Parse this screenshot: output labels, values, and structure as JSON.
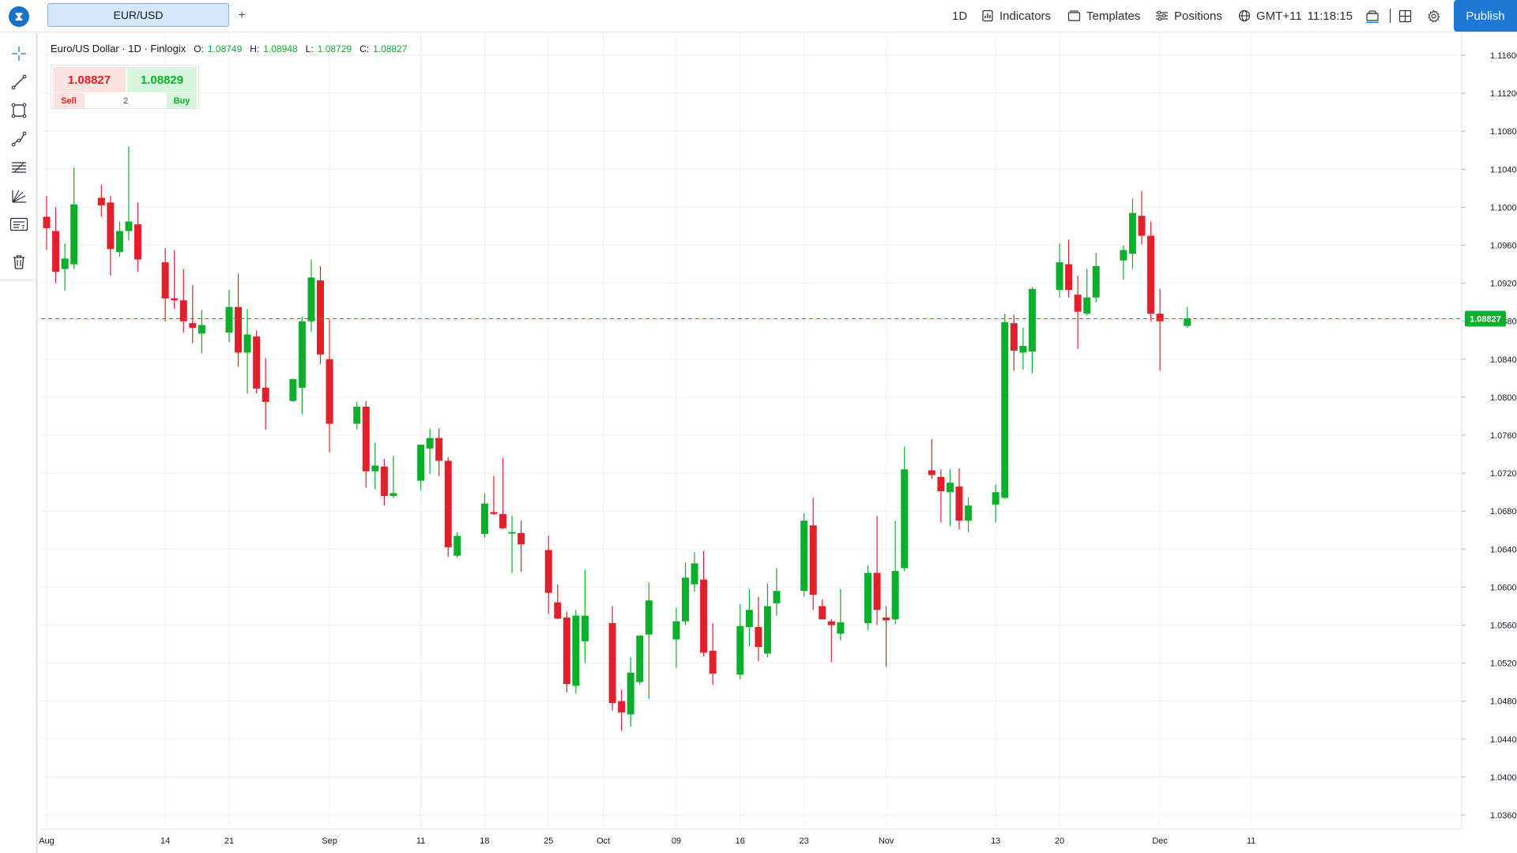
{
  "app": {
    "logo_glyph": "⧗"
  },
  "tabs": [
    {
      "label": "EUR/USD",
      "active": true
    }
  ],
  "add_tab_label": "+",
  "toolbar": {
    "interval": "1D",
    "indicators_label": "Indicators",
    "templates_label": "Templates",
    "positions_label": "Positions",
    "timezone": "GMT+11",
    "clock": "11:18:15",
    "publish_label": "Publish"
  },
  "left_tools": [
    "crosshair-icon",
    "trend-line-icon",
    "rectangle-icon",
    "path-icon",
    "fib-levels-icon",
    "pitchfork-icon",
    "text-note-icon",
    "trash-icon"
  ],
  "legend": {
    "symbol_desc": "Euro/US Dollar · 1D · Finlogix",
    "o_label": "O:",
    "o_value": "1.08749",
    "h_label": "H:",
    "h_value": "1.08948",
    "l_label": "L:",
    "l_value": "1.08729",
    "c_label": "C:",
    "c_value": "1.08827"
  },
  "trade": {
    "sell_price": "1.08827",
    "buy_price": "1.08829",
    "sell_label": "Sell",
    "buy_label": "Buy",
    "quantity": "2"
  },
  "colors": {
    "up": "#0ab02c",
    "down": "#e0202a",
    "grid": "#eef0f3",
    "last_price_line": "#0ab02c",
    "accent": "#1e78d6"
  },
  "chart_data": {
    "type": "candlestick",
    "y_axis": {
      "min": 1.034,
      "max": 1.118,
      "ticks": [
        "1.11600",
        "1.11200",
        "1.10800",
        "1.10400",
        "1.10000",
        "1.09600",
        "1.09200",
        "1.08800",
        "1.08400",
        "1.08000",
        "1.07600",
        "1.07200",
        "1.06800",
        "1.06400",
        "1.06000",
        "1.05600",
        "1.05200",
        "1.04800",
        "1.04400",
        "1.04000",
        "1.03600"
      ]
    },
    "x_axis": {
      "labels": [
        "Aug",
        "14",
        "21",
        "Sep",
        "11",
        "18",
        "25",
        "Oct",
        "09",
        "16",
        "23",
        "Nov",
        "13",
        "20",
        "Dec",
        "11"
      ],
      "label_dates": [
        "2023-08-01",
        "2023-08-14",
        "2023-08-21",
        "2023-09-01",
        "2023-09-11",
        "2023-09-18",
        "2023-09-25",
        "2023-10-01",
        "2023-10-09",
        "2023-10-16",
        "2023-10-23",
        "2023-11-01",
        "2023-11-13",
        "2023-11-20",
        "2023-12-01",
        "2023-12-11"
      ]
    },
    "last_price": "1.08827",
    "gridlines": true,
    "candles": [
      {
        "date": "2023-08-01",
        "o": 1.099,
        "h": 1.1012,
        "l": 1.0955,
        "c": 1.0978
      },
      {
        "date": "2023-08-02",
        "o": 1.0975,
        "h": 1.1,
        "l": 1.092,
        "c": 1.0932
      },
      {
        "date": "2023-08-03",
        "o": 1.0935,
        "h": 1.0962,
        "l": 1.0912,
        "c": 1.0946
      },
      {
        "date": "2023-08-04",
        "o": 1.094,
        "h": 1.1042,
        "l": 1.0935,
        "c": 1.1003
      },
      {
        "date": "2023-08-07",
        "o": 1.101,
        "h": 1.1024,
        "l": 1.099,
        "c": 1.1002
      },
      {
        "date": "2023-08-08",
        "o": 1.1005,
        "h": 1.1012,
        "l": 1.0928,
        "c": 1.0956
      },
      {
        "date": "2023-08-09",
        "o": 1.0953,
        "h": 1.0985,
        "l": 1.0948,
        "c": 1.0975
      },
      {
        "date": "2023-08-10",
        "o": 1.0975,
        "h": 1.1064,
        "l": 1.0965,
        "c": 1.0985
      },
      {
        "date": "2023-08-11",
        "o": 1.0982,
        "h": 1.1005,
        "l": 1.0932,
        "c": 1.0945
      },
      {
        "date": "2023-08-14",
        "o": 1.0942,
        "h": 1.0957,
        "l": 1.088,
        "c": 1.0904
      },
      {
        "date": "2023-08-15",
        "o": 1.0904,
        "h": 1.0955,
        "l": 1.0893,
        "c": 1.0902
      },
      {
        "date": "2023-08-16",
        "o": 1.0902,
        "h": 1.0935,
        "l": 1.0868,
        "c": 1.088
      },
      {
        "date": "2023-08-17",
        "o": 1.0878,
        "h": 1.0918,
        "l": 1.0857,
        "c": 1.0873
      },
      {
        "date": "2023-08-18",
        "o": 1.0867,
        "h": 1.0892,
        "l": 1.0846,
        "c": 1.0876
      },
      {
        "date": "2023-08-21",
        "o": 1.0868,
        "h": 1.0913,
        "l": 1.0858,
        "c": 1.0895
      },
      {
        "date": "2023-08-22",
        "o": 1.0895,
        "h": 1.093,
        "l": 1.0832,
        "c": 1.0847
      },
      {
        "date": "2023-08-23",
        "o": 1.0847,
        "h": 1.0893,
        "l": 1.0804,
        "c": 1.0866
      },
      {
        "date": "2023-08-24",
        "o": 1.0864,
        "h": 1.087,
        "l": 1.0804,
        "c": 1.0809
      },
      {
        "date": "2023-08-25",
        "o": 1.081,
        "h": 1.0841,
        "l": 1.0766,
        "c": 1.0795
      },
      {
        "date": "2023-08-28",
        "o": 1.0796,
        "h": 1.082,
        "l": 1.0795,
        "c": 1.0819
      },
      {
        "date": "2023-08-29",
        "o": 1.081,
        "h": 1.0885,
        "l": 1.0782,
        "c": 1.088
      },
      {
        "date": "2023-08-30",
        "o": 1.088,
        "h": 1.0945,
        "l": 1.0869,
        "c": 1.0926
      },
      {
        "date": "2023-08-31",
        "o": 1.0923,
        "h": 1.0938,
        "l": 1.0835,
        "c": 1.0845
      },
      {
        "date": "2023-09-01",
        "o": 1.084,
        "h": 1.0882,
        "l": 1.0742,
        "c": 1.0772
      },
      {
        "date": "2023-09-04",
        "o": 1.0772,
        "h": 1.0795,
        "l": 1.0766,
        "c": 1.079
      },
      {
        "date": "2023-09-05",
        "o": 1.079,
        "h": 1.0796,
        "l": 1.0705,
        "c": 1.0722
      },
      {
        "date": "2023-09-06",
        "o": 1.0722,
        "h": 1.0752,
        "l": 1.0703,
        "c": 1.0728
      },
      {
        "date": "2023-09-07",
        "o": 1.0727,
        "h": 1.0735,
        "l": 1.0686,
        "c": 1.0696
      },
      {
        "date": "2023-09-08",
        "o": 1.0696,
        "h": 1.0738,
        "l": 1.0694,
        "c": 1.0699
      },
      {
        "date": "2023-09-11",
        "o": 1.0712,
        "h": 1.075,
        "l": 1.0702,
        "c": 1.075
      },
      {
        "date": "2023-09-12",
        "o": 1.0746,
        "h": 1.0767,
        "l": 1.0719,
        "c": 1.0757
      },
      {
        "date": "2023-09-13",
        "o": 1.0757,
        "h": 1.0767,
        "l": 1.0717,
        "c": 1.0733
      },
      {
        "date": "2023-09-14",
        "o": 1.0733,
        "h": 1.0737,
        "l": 1.0632,
        "c": 1.0642
      },
      {
        "date": "2023-09-15",
        "o": 1.0633,
        "h": 1.0658,
        "l": 1.0631,
        "c": 1.0654
      },
      {
        "date": "2023-09-18",
        "o": 1.0656,
        "h": 1.0699,
        "l": 1.0652,
        "c": 1.0688
      },
      {
        "date": "2023-09-19",
        "o": 1.0679,
        "h": 1.0717,
        "l": 1.0676,
        "c": 1.0677
      },
      {
        "date": "2023-09-20",
        "o": 1.0677,
        "h": 1.0736,
        "l": 1.0661,
        "c": 1.0662
      },
      {
        "date": "2023-09-21",
        "o": 1.0657,
        "h": 1.0675,
        "l": 1.0615,
        "c": 1.0658
      },
      {
        "date": "2023-09-22",
        "o": 1.0657,
        "h": 1.067,
        "l": 1.0616,
        "c": 1.0645
      },
      {
        "date": "2023-09-25",
        "o": 1.0639,
        "h": 1.0654,
        "l": 1.0572,
        "c": 1.0594
      },
      {
        "date": "2023-09-26",
        "o": 1.0584,
        "h": 1.0603,
        "l": 1.0566,
        "c": 1.0567
      },
      {
        "date": "2023-09-27",
        "o": 1.0568,
        "h": 1.0574,
        "l": 1.0489,
        "c": 1.0498
      },
      {
        "date": "2023-09-28",
        "o": 1.0496,
        "h": 1.0576,
        "l": 1.0488,
        "c": 1.057
      },
      {
        "date": "2023-09-29",
        "o": 1.0543,
        "h": 1.0618,
        "l": 1.052,
        "c": 1.057
      },
      {
        "date": "2023-10-02",
        "o": 1.0562,
        "h": 1.058,
        "l": 1.047,
        "c": 1.0478
      },
      {
        "date": "2023-10-03",
        "o": 1.048,
        "h": 1.0492,
        "l": 1.0449,
        "c": 1.0468
      },
      {
        "date": "2023-10-04",
        "o": 1.0466,
        "h": 1.0526,
        "l": 1.0453,
        "c": 1.051
      },
      {
        "date": "2023-10-05",
        "o": 1.05,
        "h": 1.0549,
        "l": 1.0497,
        "c": 1.0549
      },
      {
        "date": "2023-10-06",
        "o": 1.055,
        "h": 1.0605,
        "l": 1.0482,
        "c": 1.0586
      },
      {
        "date": "2023-10-09",
        "o": 1.0545,
        "h": 1.0578,
        "l": 1.0515,
        "c": 1.0564
      },
      {
        "date": "2023-10-10",
        "o": 1.0564,
        "h": 1.0626,
        "l": 1.056,
        "c": 1.061
      },
      {
        "date": "2023-10-11",
        "o": 1.0603,
        "h": 1.0637,
        "l": 1.0595,
        "c": 1.0625
      },
      {
        "date": "2023-10-12",
        "o": 1.0608,
        "h": 1.0638,
        "l": 1.0527,
        "c": 1.0531
      },
      {
        "date": "2023-10-13",
        "o": 1.0533,
        "h": 1.0562,
        "l": 1.0497,
        "c": 1.0509
      },
      {
        "date": "2023-10-16",
        "o": 1.0508,
        "h": 1.0582,
        "l": 1.0503,
        "c": 1.0559
      },
      {
        "date": "2023-10-17",
        "o": 1.0558,
        "h": 1.0598,
        "l": 1.0538,
        "c": 1.0576
      },
      {
        "date": "2023-10-18",
        "o": 1.0558,
        "h": 1.059,
        "l": 1.0522,
        "c": 1.0537
      },
      {
        "date": "2023-10-19",
        "o": 1.053,
        "h": 1.0604,
        "l": 1.0526,
        "c": 1.058
      },
      {
        "date": "2023-10-20",
        "o": 1.0583,
        "h": 1.062,
        "l": 1.057,
        "c": 1.0596
      },
      {
        "date": "2023-10-23",
        "o": 1.0596,
        "h": 1.0678,
        "l": 1.059,
        "c": 1.067
      },
      {
        "date": "2023-10-24",
        "o": 1.0665,
        "h": 1.0694,
        "l": 1.0576,
        "c": 1.0592
      },
      {
        "date": "2023-10-25",
        "o": 1.058,
        "h": 1.0587,
        "l": 1.0566,
        "c": 1.0566
      },
      {
        "date": "2023-10-26",
        "o": 1.0564,
        "h": 1.0566,
        "l": 1.0521,
        "c": 1.056
      },
      {
        "date": "2023-10-27",
        "o": 1.0551,
        "h": 1.0598,
        "l": 1.0544,
        "c": 1.0563
      },
      {
        "date": "2023-10-30",
        "o": 1.0562,
        "h": 1.0623,
        "l": 1.0555,
        "c": 1.0615
      },
      {
        "date": "2023-10-31",
        "o": 1.0615,
        "h": 1.0675,
        "l": 1.056,
        "c": 1.0576
      },
      {
        "date": "2023-11-01",
        "o": 1.0568,
        "h": 1.058,
        "l": 1.0516,
        "c": 1.0565
      },
      {
        "date": "2023-11-02",
        "o": 1.0566,
        "h": 1.067,
        "l": 1.0561,
        "c": 1.0617
      },
      {
        "date": "2023-11-03",
        "o": 1.062,
        "h": 1.0748,
        "l": 1.0617,
        "c": 1.0724
      },
      {
        "date": "2023-11-06",
        "o": 1.0723,
        "h": 1.0756,
        "l": 1.0714,
        "c": 1.0718
      },
      {
        "date": "2023-11-07",
        "o": 1.0716,
        "h": 1.0724,
        "l": 1.0668,
        "c": 1.0701
      },
      {
        "date": "2023-11-08",
        "o": 1.07,
        "h": 1.0724,
        "l": 1.0664,
        "c": 1.071
      },
      {
        "date": "2023-11-09",
        "o": 1.0706,
        "h": 1.0725,
        "l": 1.0661,
        "c": 1.067
      },
      {
        "date": "2023-11-10",
        "o": 1.067,
        "h": 1.0694,
        "l": 1.0658,
        "c": 1.0686
      },
      {
        "date": "2023-11-13",
        "o": 1.0687,
        "h": 1.0708,
        "l": 1.0668,
        "c": 1.07
      },
      {
        "date": "2023-11-14",
        "o": 1.0694,
        "h": 1.0888,
        "l": 1.0693,
        "c": 1.0879
      },
      {
        "date": "2023-11-15",
        "o": 1.0878,
        "h": 1.0887,
        "l": 1.0828,
        "c": 1.0849
      },
      {
        "date": "2023-11-16",
        "o": 1.0847,
        "h": 1.0873,
        "l": 1.0829,
        "c": 1.0854
      },
      {
        "date": "2023-11-17",
        "o": 1.0848,
        "h": 1.0916,
        "l": 1.0825,
        "c": 1.0914
      },
      {
        "date": "2023-11-20",
        "o": 1.0913,
        "h": 1.0962,
        "l": 1.0905,
        "c": 1.0942
      },
      {
        "date": "2023-11-21",
        "o": 1.094,
        "h": 1.0966,
        "l": 1.0905,
        "c": 1.0913
      },
      {
        "date": "2023-11-22",
        "o": 1.0908,
        "h": 1.0928,
        "l": 1.0851,
        "c": 1.089
      },
      {
        "date": "2023-11-23",
        "o": 1.0888,
        "h": 1.0935,
        "l": 1.0886,
        "c": 1.0905
      },
      {
        "date": "2023-11-24",
        "o": 1.0905,
        "h": 1.0952,
        "l": 1.09,
        "c": 1.0938
      },
      {
        "date": "2023-11-27",
        "o": 1.0944,
        "h": 1.096,
        "l": 1.0924,
        "c": 1.0955
      },
      {
        "date": "2023-11-28",
        "o": 1.0951,
        "h": 1.1009,
        "l": 1.0935,
        "c": 1.0994
      },
      {
        "date": "2023-11-29",
        "o": 1.0991,
        "h": 1.1017,
        "l": 1.0961,
        "c": 1.097
      },
      {
        "date": "2023-11-30",
        "o": 1.097,
        "h": 1.0985,
        "l": 1.088,
        "c": 1.0888
      },
      {
        "date": "2023-12-01",
        "o": 1.0888,
        "h": 1.0914,
        "l": 1.0828,
        "c": 1.088
      },
      {
        "date": "2023-12-04",
        "o": 1.0875,
        "h": 1.0895,
        "l": 1.0873,
        "c": 1.0883
      }
    ]
  }
}
